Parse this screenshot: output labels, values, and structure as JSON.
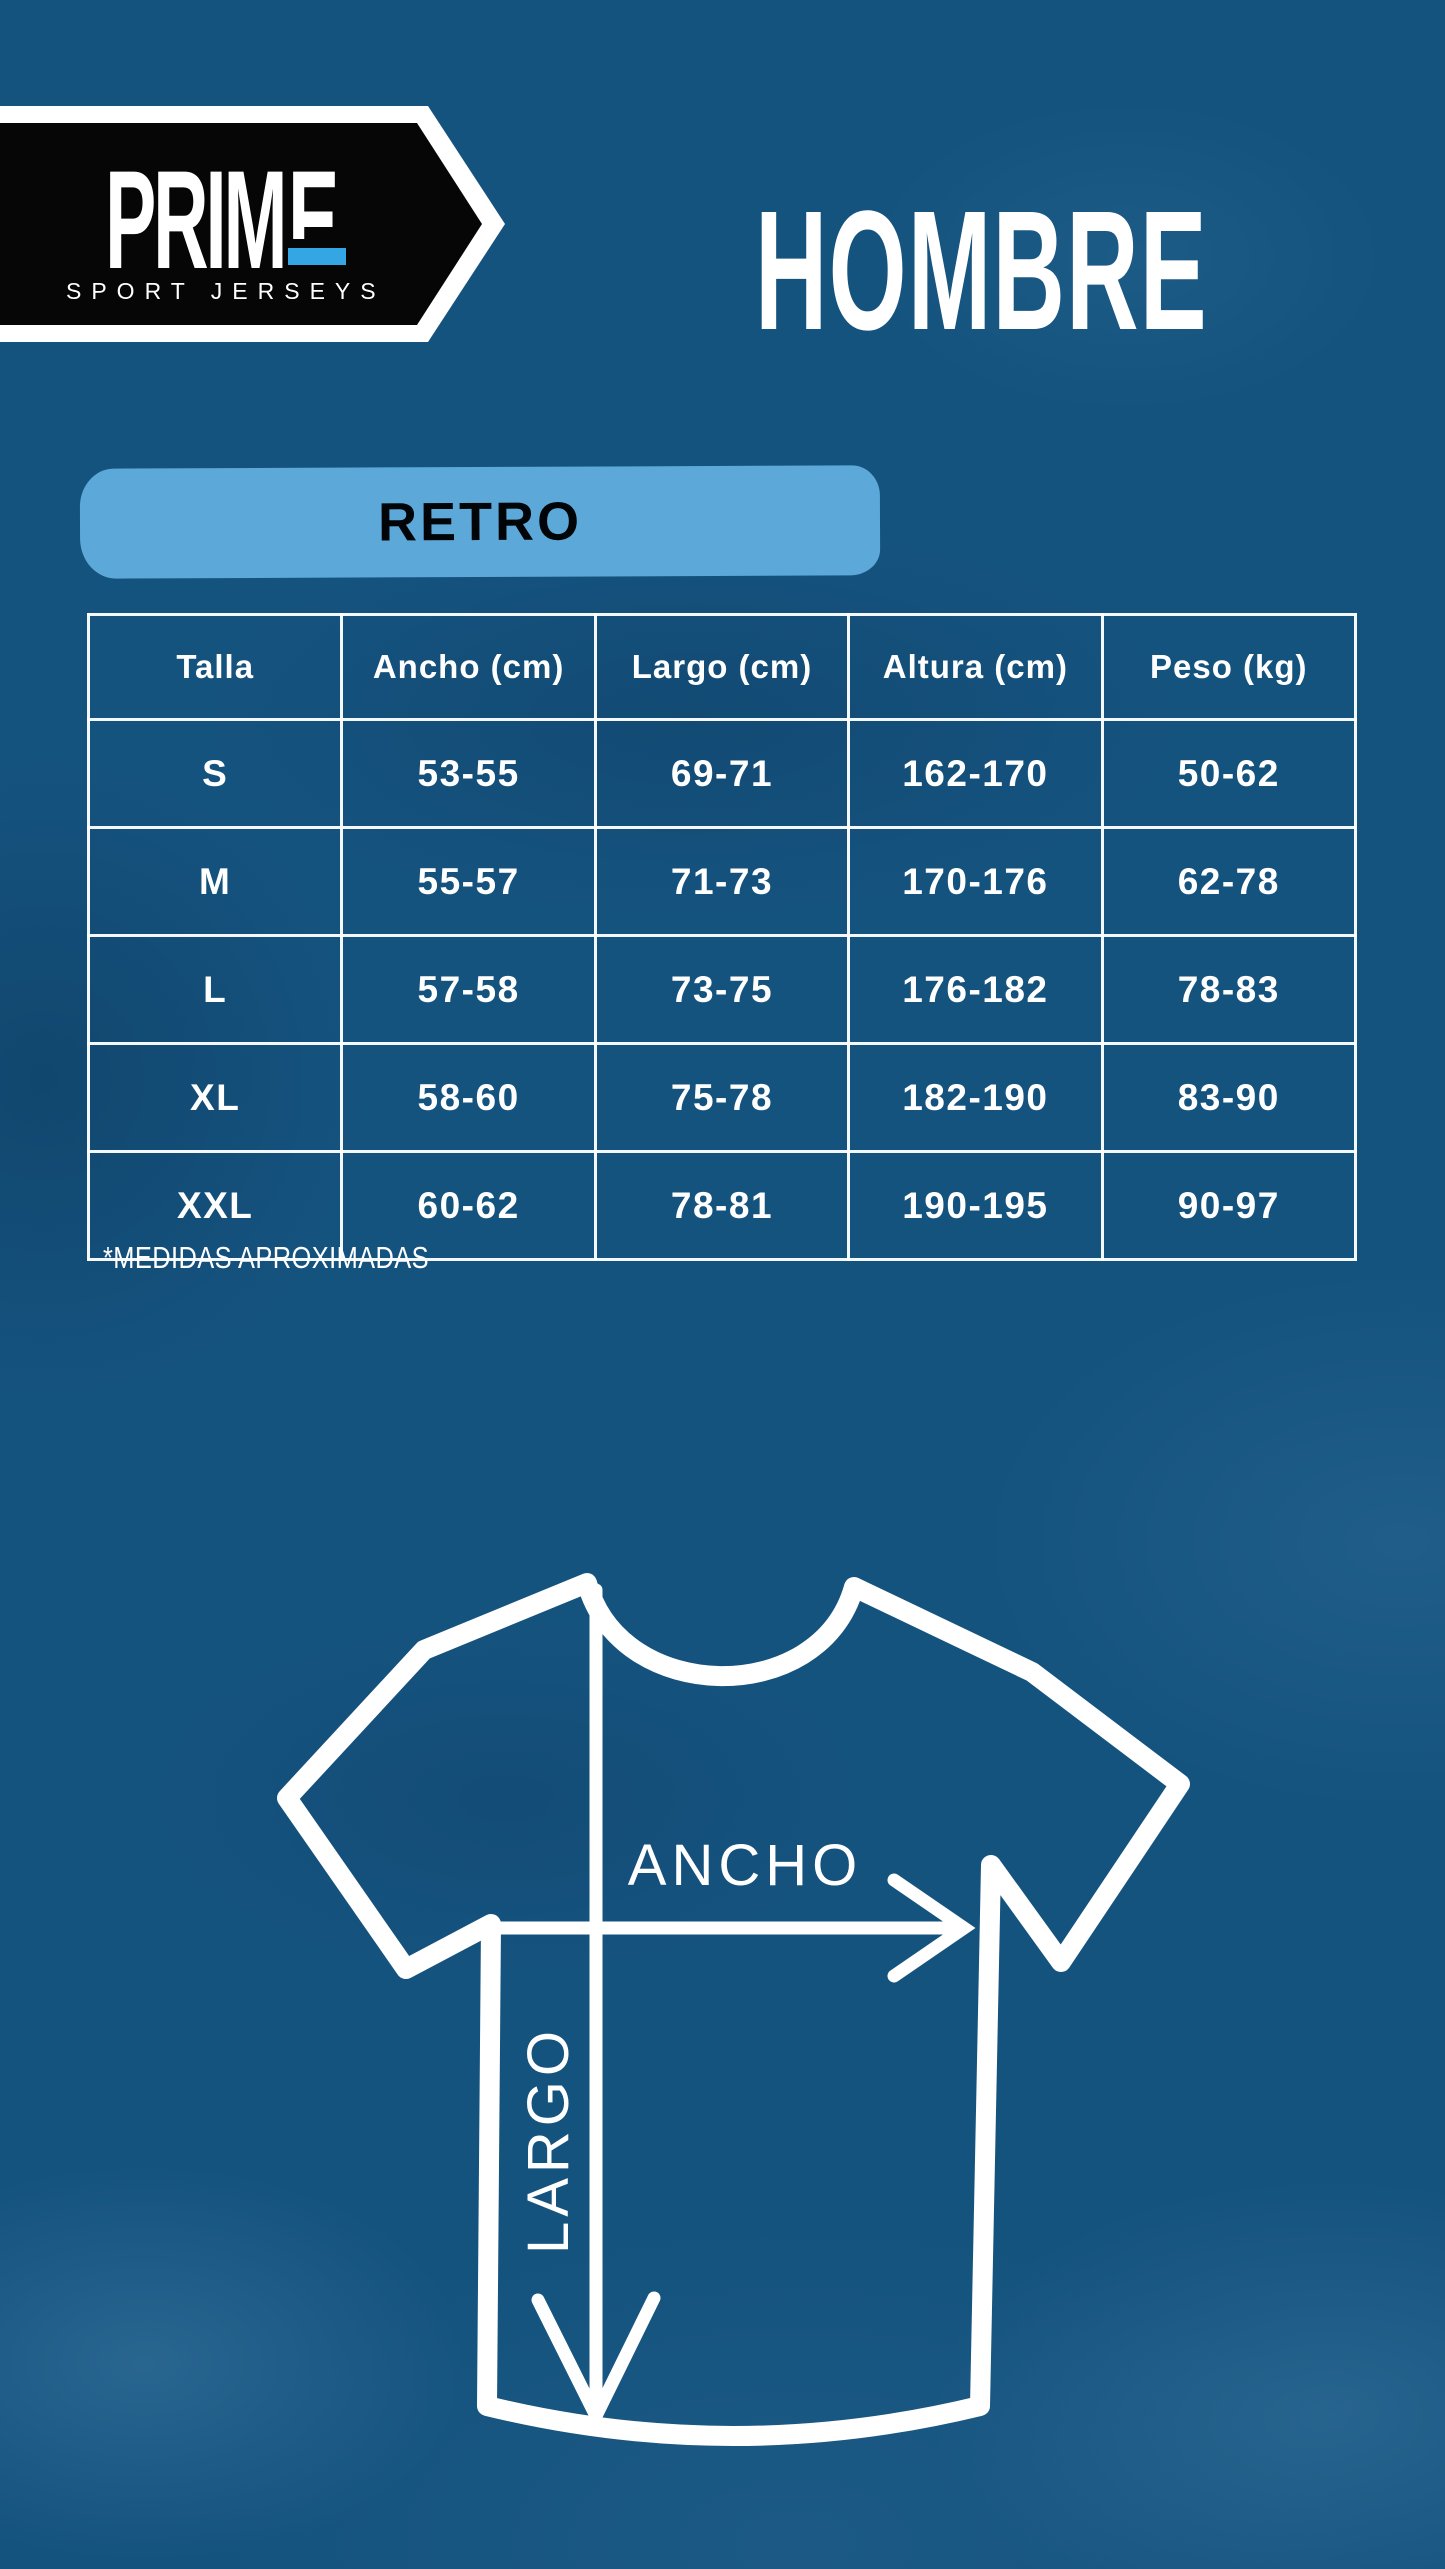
{
  "brand": {
    "name_prefix": "PRIM",
    "name_last_letter": "E",
    "tagline": "SPORT JERSEYS"
  },
  "page": {
    "title": "HOMBRE",
    "category": "RETRO",
    "footnote": "*MEDIDAS APROXIMADAS"
  },
  "size_table": {
    "columns": [
      "Talla",
      "Ancho (cm)",
      "Largo (cm)",
      "Altura (cm)",
      "Peso (kg)"
    ],
    "rows": [
      [
        "S",
        "53-55",
        "69-71",
        "162-170",
        "50-62"
      ],
      [
        "M",
        "55-57",
        "71-73",
        "170-176",
        "62-78"
      ],
      [
        "L",
        "57-58",
        "73-75",
        "176-182",
        "78-83"
      ],
      [
        "XL",
        "58-60",
        "75-78",
        "182-190",
        "83-90"
      ],
      [
        "XXL",
        "60-62",
        "78-81",
        "190-195",
        "90-97"
      ]
    ]
  },
  "diagram": {
    "width_label": "ANCHO",
    "length_label": "LARGO"
  },
  "colors": {
    "background": "#15537f",
    "badge_blue": "#5ca9d9",
    "accent_blue": "#33a6e3",
    "banner_black": "#060606",
    "text_white": "#ffffff"
  }
}
